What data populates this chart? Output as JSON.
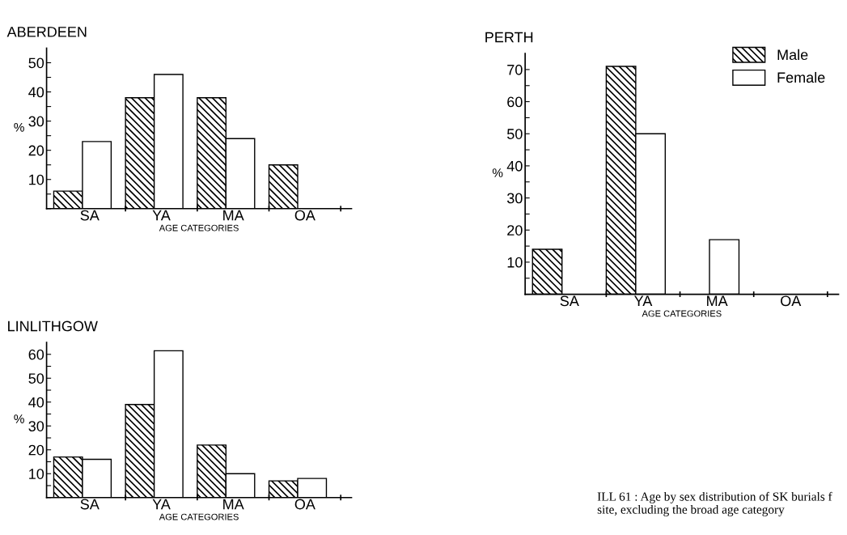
{
  "chart_data": [
    {
      "type": "bar",
      "title": "ABERDEEN",
      "xlabel": "AGE CATEGORIES",
      "ylabel": "%",
      "categories": [
        "SA",
        "YA",
        "MA",
        "OA"
      ],
      "series": [
        {
          "color": "#000000",
          "values": [
            6,
            38,
            38,
            15
          ]
        },
        {
          "color": "#ffffff",
          "values": [
            23,
            46,
            24,
            0
          ]
        }
      ],
      "ylim": [
        0,
        55
      ],
      "yticks": [
        {
          "value": 0,
          "label": null
        },
        {
          "value": 5,
          "label": null
        },
        10,
        {
          "value": 15,
          "label": null
        },
        20,
        {
          "value": 25,
          "label": null
        },
        30,
        {
          "value": 35,
          "label": null
        },
        40,
        {
          "value": 45,
          "label": null
        },
        50
      ],
      "grid": false,
      "legend": false
    },
    {
      "type": "bar",
      "title": "PERTH",
      "xlabel": "AGE CATEGORIES",
      "ylabel": "%",
      "categories": [
        "SA",
        "YA",
        "MA",
        "OA"
      ],
      "series": [
        {
          "name": "Male",
          "color": "#000000",
          "values": [
            14,
            71,
            0,
            0
          ]
        },
        {
          "name": "Female",
          "color": "#ffffff",
          "values": [
            0,
            50,
            17,
            0
          ]
        }
      ],
      "ylim": [
        0,
        75
      ],
      "yticks": [
        {
          "value": 0,
          "label": null
        },
        {
          "value": 5,
          "label": null
        },
        10,
        {
          "value": 15,
          "label": null
        },
        20,
        {
          "value": 25,
          "label": null
        },
        30,
        {
          "value": 35,
          "label": null
        },
        40,
        {
          "value": 45,
          "label": null
        },
        50,
        {
          "value": 55,
          "label": null
        },
        60,
        {
          "value": 65,
          "label": null
        },
        70
      ],
      "grid": false,
      "legend": "top right"
    },
    {
      "type": "bar",
      "title": "LINLITHGOW",
      "xlabel": "AGE CATEGORIES",
      "ylabel": "%",
      "categories": [
        "SA",
        "YA",
        "MA",
        "OA"
      ],
      "series": [
        {
          "color": "#000000",
          "values": [
            17,
            39,
            22,
            7
          ]
        },
        {
          "color": "#ffffff",
          "values": [
            16,
            61.5,
            10,
            8
          ]
        }
      ],
      "ylim": [
        0,
        65
      ],
      "yticks": [
        {
          "value": 0,
          "label": null
        },
        {
          "value": 5,
          "label": null
        },
        10,
        {
          "value": 15,
          "label": null
        },
        20,
        {
          "value": 25,
          "label": null
        },
        30,
        {
          "value": 35,
          "label": null
        },
        40,
        {
          "value": 45,
          "label": null
        },
        50,
        {
          "value": 55,
          "label": null
        },
        60
      ],
      "grid": false,
      "legend": false,
      "annotations": [
        "ILL 61 : Age by sex distribution of SK burials f\nsite, excluding the broad age category"
      ]
    }
  ]
}
